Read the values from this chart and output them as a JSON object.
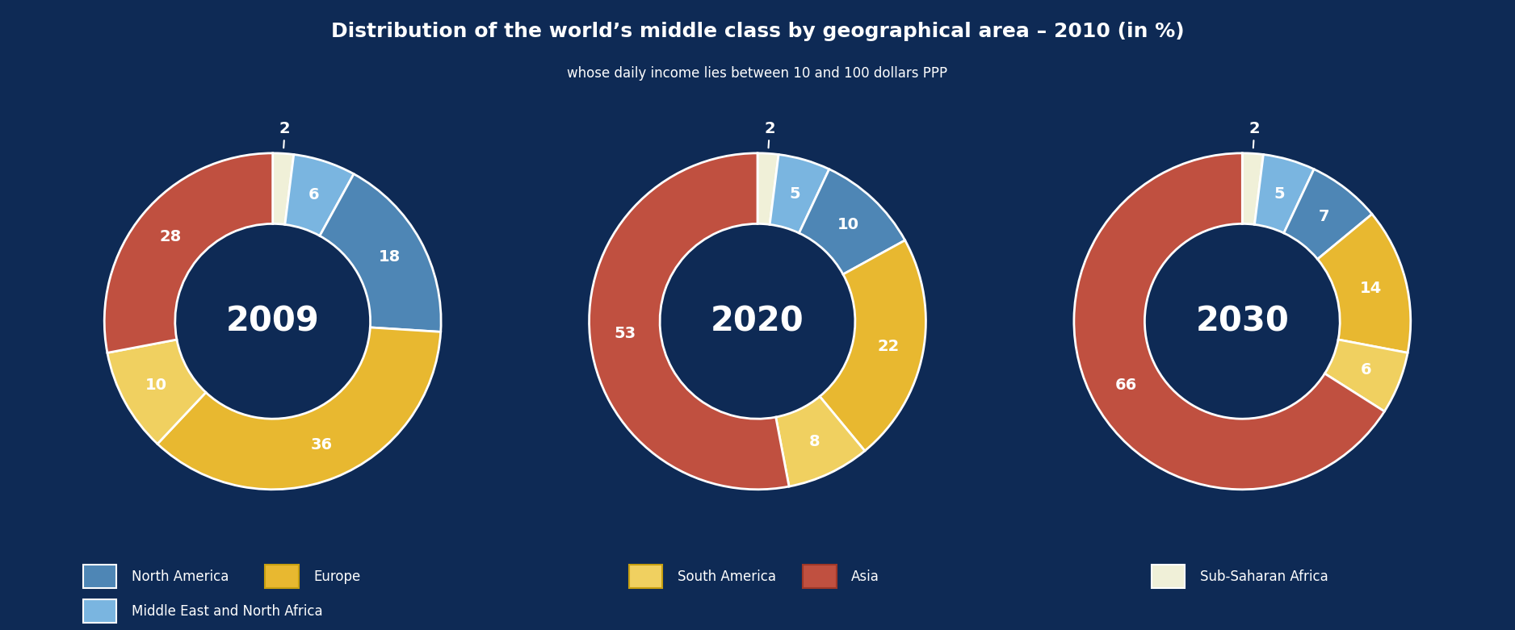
{
  "title": "Distribution of the world’s middle class by geographical area – 2010 (in %)",
  "subtitle": "whose daily income lies between 10 and 100 dollars PPP",
  "background_color": "#0e2a55",
  "inner_color": "#0e2a55",
  "text_color": "#ffffff",
  "charts": [
    {
      "year": "2009",
      "segments": [
        {
          "label": "Sub-Saharan Africa",
          "value": 2,
          "color": "#f0f0d8"
        },
        {
          "label": "Middle East and North Africa",
          "value": 6,
          "color": "#7ab5e0"
        },
        {
          "label": "North America",
          "value": 18,
          "color": "#4e86b5"
        },
        {
          "label": "Europe",
          "value": 36,
          "color": "#e8b830"
        },
        {
          "label": "South America",
          "value": 10,
          "color": "#f0d060"
        },
        {
          "label": "Asia",
          "value": 28,
          "color": "#c05040"
        }
      ]
    },
    {
      "year": "2020",
      "segments": [
        {
          "label": "Sub-Saharan Africa",
          "value": 2,
          "color": "#f0f0d8"
        },
        {
          "label": "Middle East and North Africa",
          "value": 5,
          "color": "#7ab5e0"
        },
        {
          "label": "North America",
          "value": 10,
          "color": "#4e86b5"
        },
        {
          "label": "Europe",
          "value": 22,
          "color": "#e8b830"
        },
        {
          "label": "South America",
          "value": 8,
          "color": "#f0d060"
        },
        {
          "label": "Asia",
          "value": 53,
          "color": "#c05040"
        }
      ]
    },
    {
      "year": "2030",
      "segments": [
        {
          "label": "Sub-Saharan Africa",
          "value": 2,
          "color": "#f0f0d8"
        },
        {
          "label": "Middle East and North Africa",
          "value": 5,
          "color": "#7ab5e0"
        },
        {
          "label": "North America",
          "value": 7,
          "color": "#4e86b5"
        },
        {
          "label": "Europe",
          "value": 14,
          "color": "#e8b830"
        },
        {
          "label": "South America",
          "value": 6,
          "color": "#f0d060"
        },
        {
          "label": "Asia",
          "value": 66,
          "color": "#c05040"
        }
      ]
    }
  ],
  "legend_row1": [
    {
      "label": "North America",
      "color": "#4e86b5",
      "border": "#ffffff"
    },
    {
      "label": "Europe",
      "color": "#e8b830",
      "border": "#c8a010"
    },
    {
      "label": "South America",
      "color": "#f0d060",
      "border": "#c8a010"
    },
    {
      "label": "Asia",
      "color": "#c05040",
      "border": "#a03828"
    },
    {
      "label": "Sub-Saharan Africa",
      "color": "#f0f0d8",
      "border": "#ffffff"
    }
  ],
  "legend_row2": [
    {
      "label": "Middle East and North Africa",
      "color": "#7ab5e0",
      "border": "#ffffff"
    }
  ],
  "donut_width": 0.42,
  "label_fontsize": 14,
  "year_fontsize": 30,
  "title_fontsize": 18,
  "subtitle_fontsize": 12,
  "legend_fontsize": 12
}
